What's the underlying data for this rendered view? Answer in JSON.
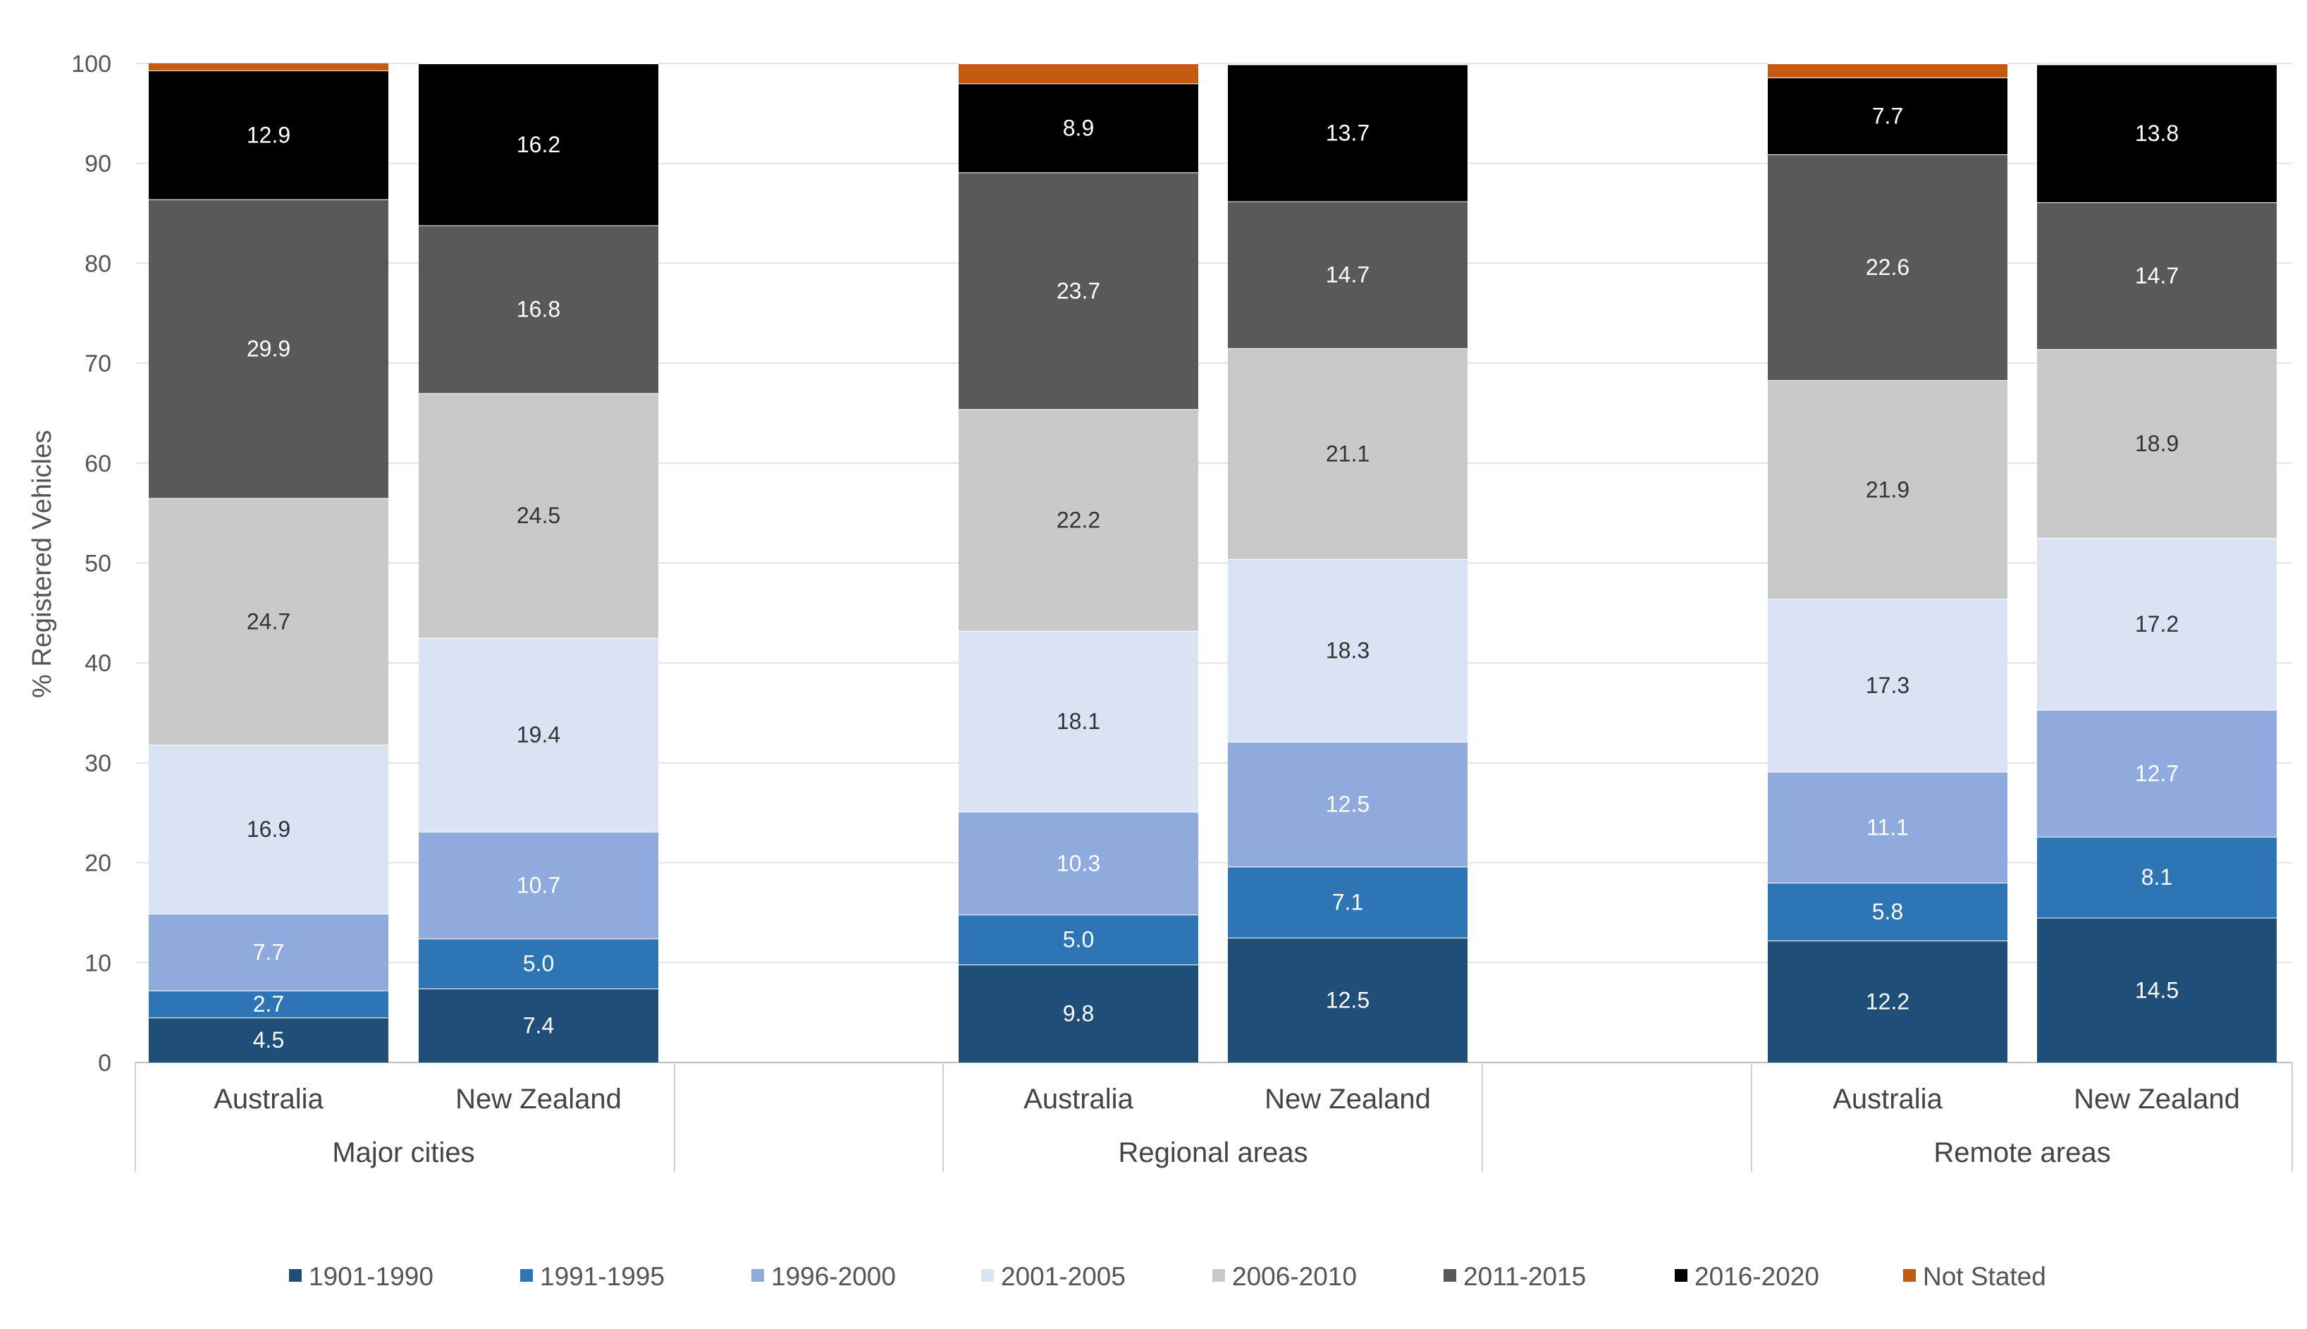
{
  "chart_data": {
    "type": "bar",
    "stacked": true,
    "ylabel": "% Registered Vehicles",
    "ylim": [
      0,
      100
    ],
    "yticks": [
      0,
      10,
      20,
      30,
      40,
      50,
      60,
      70,
      80,
      90,
      100
    ],
    "grid": true,
    "legend_position": "bottom",
    "groups": [
      "Major cities",
      "Regional areas",
      "Remote areas"
    ],
    "categories": [
      "Australia",
      "New Zealand",
      "Australia",
      "New Zealand",
      "Australia",
      "New Zealand"
    ],
    "category_group": [
      0,
      0,
      1,
      1,
      2,
      2
    ],
    "series": [
      {
        "name": "1901-1990",
        "color": "#1f4e79",
        "label_color": "#ffffff",
        "values": [
          4.5,
          7.4,
          9.8,
          12.5,
          12.2,
          14.5
        ]
      },
      {
        "name": "1991-1995",
        "color": "#2e75b6",
        "label_color": "#ffffff",
        "values": [
          2.7,
          5.0,
          5.0,
          7.1,
          5.8,
          8.1
        ]
      },
      {
        "name": "1996-2000",
        "color": "#8faadc",
        "label_color": "#ffffff",
        "values": [
          7.7,
          10.7,
          10.3,
          12.5,
          11.1,
          12.7
        ]
      },
      {
        "name": "2001-2005",
        "color": "#dae3f3",
        "label_color": "#333333",
        "values": [
          16.9,
          19.4,
          18.1,
          18.3,
          17.3,
          17.2
        ]
      },
      {
        "name": "2006-2010",
        "color": "#c9c9c9",
        "label_color": "#333333",
        "values": [
          24.7,
          24.5,
          22.2,
          21.1,
          21.9,
          18.9
        ]
      },
      {
        "name": "2011-2015",
        "color": "#595959",
        "label_color": "#ffffff",
        "values": [
          29.9,
          16.8,
          23.7,
          14.7,
          22.6,
          14.7
        ]
      },
      {
        "name": "2016-2020",
        "color": "#000000",
        "label_color": "#ffffff",
        "values": [
          12.9,
          16.2,
          8.9,
          13.7,
          7.7,
          13.8
        ]
      },
      {
        "name": "Not Stated",
        "color": "#c55a11",
        "label_color": "#ffffff",
        "values": [
          0.8,
          0,
          2.0,
          0,
          1.4,
          0
        ]
      }
    ],
    "data_labels": [
      [
        "4.5",
        "7.4",
        "9.8",
        "12.5",
        "12.2",
        "14.5"
      ],
      [
        "2.7",
        "5.0",
        "5.0",
        "7.1",
        "5.8",
        "8.1"
      ],
      [
        "7.7",
        "10.7",
        "10.3",
        "12.5",
        "11.1",
        "12.7"
      ],
      [
        "16.9",
        "19.4",
        "18.1",
        "18.3",
        "17.3",
        "17.2"
      ],
      [
        "24.7",
        "24.5",
        "22.2",
        "21.1",
        "21.9",
        "18.9"
      ],
      [
        "29.9",
        "16.8",
        "23.7",
        "14.7",
        "22.6",
        "14.7"
      ],
      [
        "12.9",
        "16.2",
        "8.9",
        "13.7",
        "7.7",
        "13.8"
      ],
      [
        "",
        "",
        "",
        "",
        "",
        ""
      ]
    ]
  }
}
